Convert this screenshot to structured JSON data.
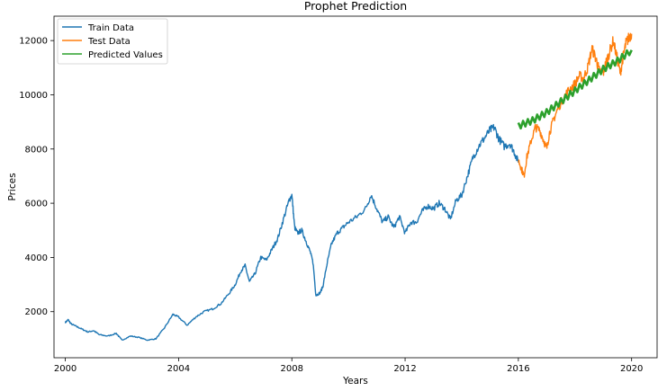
{
  "chart_data": {
    "type": "line",
    "title": "Prophet Prediction",
    "xlabel": "Years",
    "ylabel": "Prices",
    "xlim": [
      1999.6,
      2020.9
    ],
    "ylim": [
      300,
      12900
    ],
    "xticks": [
      2000,
      2004,
      2008,
      2012,
      2016,
      2020
    ],
    "xtick_labels": [
      "2000",
      "2004",
      "2008",
      "2012",
      "2016",
      "2020"
    ],
    "yticks": [
      2000,
      4000,
      6000,
      8000,
      10000,
      12000
    ],
    "ytick_labels": [
      "2000",
      "4000",
      "6000",
      "8000",
      "10000",
      "12000"
    ],
    "legend_position": "top-left",
    "series": [
      {
        "name": "Train Data",
        "color": "#1f77b4",
        "x": [
          2000.0,
          2000.1,
          2000.2,
          2000.4,
          2000.6,
          2000.8,
          2001.0,
          2001.2,
          2001.5,
          2001.8,
          2002.0,
          2002.3,
          2002.6,
          2002.9,
          2003.2,
          2003.5,
          2003.8,
          2004.0,
          2004.3,
          2004.6,
          2004.9,
          2005.2,
          2005.5,
          2005.8,
          2006.0,
          2006.2,
          2006.35,
          2006.5,
          2006.7,
          2006.9,
          2007.1,
          2007.3,
          2007.5,
          2007.7,
          2007.9,
          2008.0,
          2008.1,
          2008.2,
          2008.35,
          2008.5,
          2008.65,
          2008.75,
          2008.85,
          2009.0,
          2009.1,
          2009.25,
          2009.4,
          2009.6,
          2009.8,
          2010.0,
          2010.3,
          2010.6,
          2010.8,
          2011.0,
          2011.2,
          2011.4,
          2011.6,
          2011.8,
          2012.0,
          2012.2,
          2012.4,
          2012.6,
          2012.8,
          2013.0,
          2013.2,
          2013.4,
          2013.6,
          2013.8,
          2014.0,
          2014.2,
          2014.4,
          2014.6,
          2014.8,
          2015.0,
          2015.15,
          2015.3,
          2015.5,
          2015.7,
          2015.85,
          2016.0
        ],
        "values": [
          1600,
          1700,
          1550,
          1450,
          1350,
          1250,
          1300,
          1150,
          1100,
          1200,
          950,
          1100,
          1050,
          950,
          1000,
          1400,
          1900,
          1800,
          1500,
          1800,
          2000,
          2100,
          2300,
          2700,
          3000,
          3500,
          3700,
          3100,
          3400,
          4000,
          3900,
          4300,
          4700,
          5400,
          6100,
          6300,
          5100,
          4900,
          5000,
          4600,
          4200,
          3800,
          2600,
          2700,
          2950,
          3800,
          4500,
          4900,
          5100,
          5300,
          5500,
          5800,
          6300,
          5800,
          5300,
          5500,
          5100,
          5500,
          4900,
          5300,
          5300,
          5700,
          5900,
          5800,
          6000,
          5800,
          5400,
          6100,
          6300,
          7000,
          7700,
          8100,
          8400,
          8700,
          8800,
          8400,
          8100,
          8200,
          7900,
          7500
        ]
      },
      {
        "name": "Test Data",
        "color": "#ff7f0e",
        "x": [
          2016.0,
          2016.1,
          2016.2,
          2016.3,
          2016.45,
          2016.6,
          2016.75,
          2016.9,
          2017.0,
          2017.1,
          2017.25,
          2017.4,
          2017.6,
          2017.8,
          2018.0,
          2018.15,
          2018.3,
          2018.45,
          2018.6,
          2018.75,
          2018.85,
          2019.0,
          2019.1,
          2019.2,
          2019.35,
          2019.5,
          2019.6,
          2019.7,
          2019.8,
          2019.9,
          2020.0
        ],
        "values": [
          7600,
          7300,
          7000,
          7700,
          8300,
          8800,
          8700,
          8300,
          8000,
          8600,
          9100,
          9500,
          9900,
          10200,
          10400,
          10700,
          10600,
          11000,
          11700,
          11300,
          10900,
          10800,
          11200,
          11500,
          12000,
          11300,
          10800,
          11400,
          11900,
          12100,
          12250
        ]
      },
      {
        "name": "Predicted Values",
        "color": "#2ca02c",
        "x": [
          2016.0,
          2016.5,
          2017.0,
          2017.5,
          2018.0,
          2018.5,
          2019.0,
          2019.5,
          2020.0
        ],
        "values": [
          8850,
          9050,
          9350,
          9750,
          10150,
          10550,
          10950,
          11250,
          11650
        ]
      }
    ]
  }
}
